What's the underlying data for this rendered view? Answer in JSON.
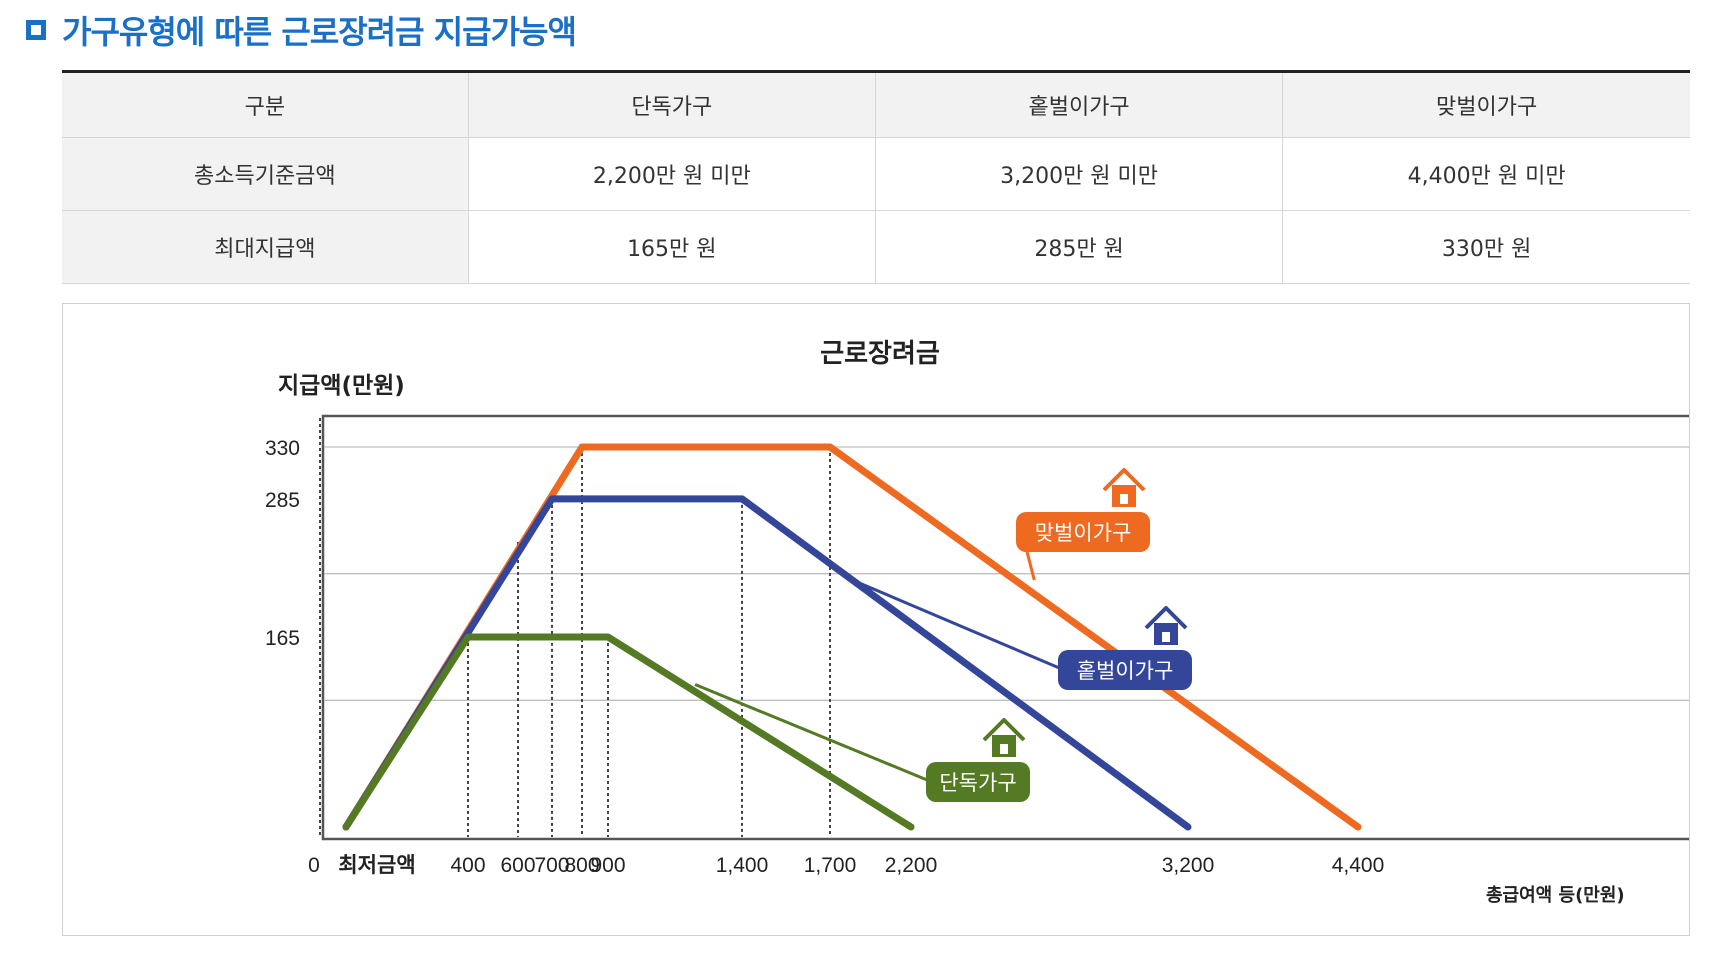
{
  "section": {
    "title": "가구유형에 따른 근로장려금 지급가능액"
  },
  "table": {
    "headers": [
      "구분",
      "단독가구",
      "홑벌이가구",
      "맞벌이가구"
    ],
    "rows": [
      [
        "총소득기준금액",
        "2,200만 원 미만",
        "3,200만 원 미만",
        "4,400만 원 미만"
      ],
      [
        "최대지급액",
        "165만 원",
        "285만 원",
        "330만 원"
      ]
    ]
  },
  "chart_data": {
    "type": "line",
    "title": "근로장려금",
    "ylabel": "지급액(만원)",
    "xlabel": "총급여액 등(만원)",
    "x_origin_label": "0",
    "x_min_label": "최저금액",
    "x_ticks": [
      400,
      600,
      700,
      800,
      900,
      1400,
      1700,
      2200,
      3200,
      4400
    ],
    "x_tick_labels": [
      "400",
      "600",
      "700",
      "800",
      "900",
      "1,400",
      "1,700",
      "2,200",
      "3,200",
      "4,400"
    ],
    "y_ticks": [
      165,
      285,
      330
    ],
    "ylim": [
      0,
      365
    ],
    "series": [
      {
        "name": "맞벌이가구",
        "color": "#ee6a21",
        "x": [
          0,
          800,
          1700,
          4400
        ],
        "y": [
          0,
          330,
          330,
          0
        ]
      },
      {
        "name": "홑벌이가구",
        "color": "#34469a",
        "x": [
          0,
          700,
          1400,
          3200
        ],
        "y": [
          0,
          285,
          285,
          0
        ]
      },
      {
        "name": "단독가구",
        "color": "#547a24",
        "x": [
          0,
          400,
          900,
          2200
        ],
        "y": [
          0,
          165,
          165,
          0
        ]
      }
    ]
  }
}
